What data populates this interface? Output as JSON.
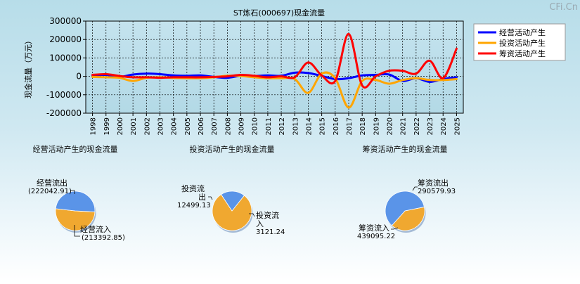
{
  "watermark": "CFi.Cn",
  "chart_data": [
    {
      "type": "line",
      "title": "ST炼石(000697)现金流量",
      "ylabel": "现金流量（万元）",
      "x": [
        "1998",
        "1999",
        "2000",
        "2001",
        "2002",
        "2003",
        "2004",
        "2005",
        "2006",
        "2007",
        "2008",
        "2009",
        "2010",
        "2011",
        "2012",
        "2013",
        "2014",
        "2015",
        "2016",
        "2017",
        "2018",
        "2019",
        "2020",
        "2021",
        "2022",
        "2023",
        "2024",
        "2025"
      ],
      "ylim": [
        -200000,
        300000
      ],
      "yticks": [
        "300000",
        "200000",
        "100000",
        "0",
        "-100000",
        "-200000"
      ],
      "grid": true,
      "legend": "top-right",
      "series": [
        {
          "name": "经营活动产生",
          "color": "#0000ff",
          "values": [
            5000,
            8000,
            -3000,
            10000,
            15000,
            12000,
            5000,
            3000,
            5000,
            -3000,
            -8000,
            3000,
            2000,
            5000,
            3000,
            20000,
            18000,
            2000,
            -15000,
            -10000,
            5000,
            8000,
            10000,
            -25000,
            -10000,
            -30000,
            -15000,
            -5000
          ]
        },
        {
          "name": "投资活动产生",
          "color": "#ffa500",
          "values": [
            -3000,
            -5000,
            -8000,
            -25000,
            -8000,
            -5000,
            -8000,
            -10000,
            -10000,
            -5000,
            3000,
            2000,
            -5000,
            -10000,
            -10000,
            -15000,
            -90000,
            15000,
            -10000,
            -170000,
            -25000,
            -20000,
            -40000,
            -20000,
            -10000,
            -20000,
            -20000,
            -15000
          ]
        },
        {
          "name": "筹资活动产生",
          "color": "#ff0000",
          "values": [
            8000,
            12000,
            2000,
            -5000,
            -5000,
            -8000,
            -5000,
            -5000,
            -5000,
            -3000,
            0,
            8000,
            3000,
            -5000,
            0,
            -5000,
            75000,
            5000,
            -25000,
            230000,
            -50000,
            0,
            30000,
            30000,
            15000,
            85000,
            -10000,
            150000
          ]
        }
      ]
    },
    {
      "type": "pie",
      "title": "经营活动产生的现金流量",
      "slices": [
        {
          "label": "经营流出",
          "value": 222042.91,
          "value_text": "(222042.91)",
          "color": "#f0a830"
        },
        {
          "label": "经营流入",
          "value": 213392.85,
          "value_text": "(213392.85)",
          "color": "#5a94e8"
        }
      ]
    },
    {
      "type": "pie",
      "title": "投资活动产生的现金流量",
      "slices": [
        {
          "label": "投资流出",
          "value": 12499.13,
          "value_text": "12499.13",
          "color": "#f0a830"
        },
        {
          "label": "投资流入",
          "value": 3121.24,
          "value_text": "3121.24",
          "color": "#5a94e8"
        }
      ]
    },
    {
      "type": "pie",
      "title": "筹资活动产生的现金流量",
      "slices": [
        {
          "label": "筹资流出",
          "value": 290579.93,
          "value_text": "290579.93",
          "color": "#f0a830"
        },
        {
          "label": "筹资流入",
          "value": 439095.22,
          "value_text": "439095.22",
          "color": "#5a94e8"
        }
      ]
    }
  ]
}
